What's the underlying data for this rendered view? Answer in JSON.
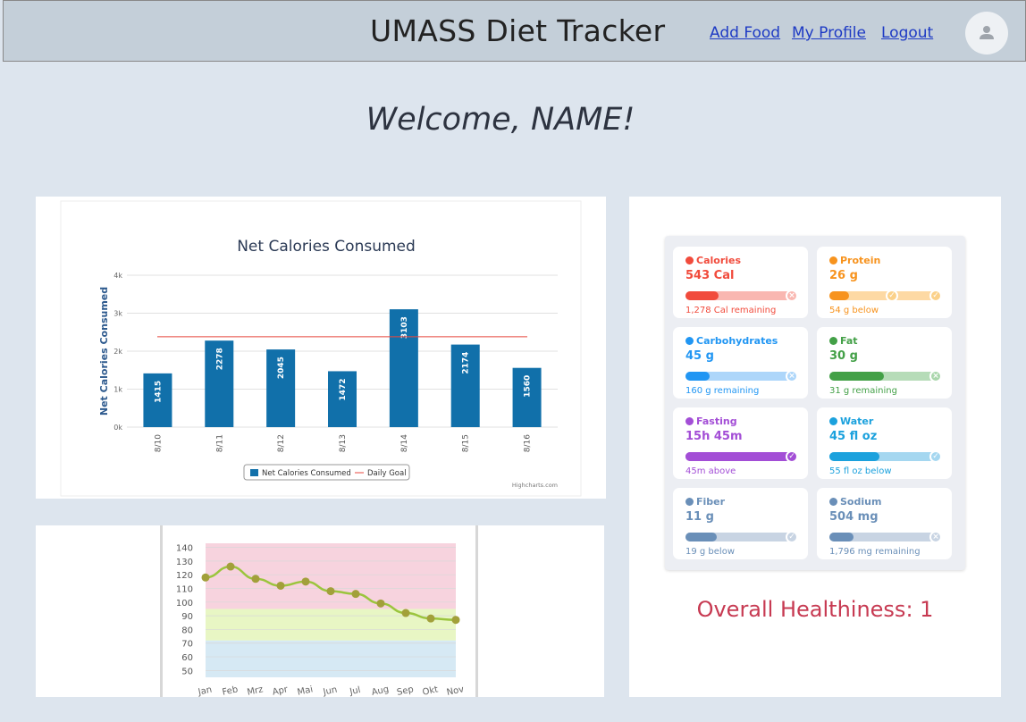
{
  "header": {
    "title": "UMASS Diet Tracker",
    "links": {
      "add_food": "Add Food",
      "my_profile": "My Profile",
      "logout": "Logout"
    }
  },
  "welcome": "Welcome, NAME!",
  "calories_chart": {
    "credit": "Highcharts.com",
    "chart_data": {
      "type": "bar",
      "title": "Net Calories Consumed",
      "xlabel": "",
      "ylabel": "Net Calories Consumed",
      "categories": [
        "8/10",
        "8/11",
        "8/12",
        "8/13",
        "8/14",
        "8/15",
        "8/16"
      ],
      "series": [
        {
          "name": "Net Calories Consumed",
          "values": [
            1415,
            2278,
            2045,
            1472,
            3103,
            2174,
            1560
          ]
        }
      ],
      "goal": {
        "name": "Daily Goal",
        "value": 2380
      },
      "ylim": [
        0,
        4000
      ],
      "yticks": [
        "0k",
        "1k",
        "2k",
        "3k",
        "4k"
      ],
      "grid": true,
      "legend": "bottom-center",
      "colors": {
        "bar": "#1170aa",
        "goal": "#e8473f"
      }
    }
  },
  "weight_chart": {
    "chart_data": {
      "type": "line",
      "title": "",
      "categories": [
        "Jan",
        "Feb",
        "Mrz",
        "Apr",
        "Mai",
        "Jun",
        "Jul",
        "Aug",
        "Sep",
        "Okt",
        "Nov"
      ],
      "series": [
        {
          "values": [
            118,
            126,
            117,
            112,
            115,
            108,
            106,
            99,
            92,
            88,
            87
          ]
        }
      ],
      "ylim": [
        45,
        143
      ],
      "yticks": [
        50,
        60,
        70,
        80,
        90,
        100,
        110,
        120,
        130,
        140
      ],
      "bands": [
        {
          "from": 45,
          "to": 72,
          "color": "#d6e9f4"
        },
        {
          "from": 72,
          "to": 95,
          "color": "#e8f6c4"
        },
        {
          "from": 95,
          "to": 143,
          "color": "#f7d3de"
        }
      ],
      "colors": {
        "line": "#9bc53d",
        "point": "#a2a03a"
      }
    }
  },
  "nutrients": [
    {
      "name": "Calories",
      "value": "543 Cal",
      "sub": "1,278 Cal remaining",
      "color": "#f14b3c",
      "track": "#f9b7b1",
      "fill": 0.3,
      "end_icon": "x-icon",
      "end_color": "#f9b7b1",
      "icon": "flame-icon"
    },
    {
      "name": "Protein",
      "value": "26 g",
      "sub": "54 g below",
      "color": "#f7931e",
      "track": "#fdd9a4",
      "fill": 0.18,
      "end_icon": "check-icon",
      "end_color": "#fbd18a",
      "icon": "protein-icon",
      "mid_check": true
    },
    {
      "name": "Carbohydrates",
      "value": "45 g",
      "sub": "160 g remaining",
      "color": "#2196f3",
      "track": "#add6fa",
      "fill": 0.22,
      "end_icon": "x-icon",
      "end_color": "#add6fa",
      "icon": "carb-icon"
    },
    {
      "name": "Fat",
      "value": "30 g",
      "sub": "31 g remaining",
      "color": "#43a047",
      "track": "#b6dcb8",
      "fill": 0.49,
      "end_icon": "x-icon",
      "end_color": "#a9d6ab",
      "icon": "fat-icon"
    },
    {
      "name": "Fasting",
      "value": "15h 45m",
      "sub": "45m above",
      "color": "#a34ed6",
      "track": "#a34ed6",
      "fill": 0.96,
      "end_icon": "check-icon",
      "end_color": "#a34ed6",
      "icon": "timer-icon"
    },
    {
      "name": "Water",
      "value": "45 fl oz",
      "sub": "55 fl oz below",
      "color": "#1ba1dd",
      "track": "#a5d7f0",
      "fill": 0.45,
      "end_icon": "check-icon",
      "end_color": "#a5d7f0",
      "icon": "drop-icon"
    },
    {
      "name": "Fiber",
      "value": "11 g",
      "sub": "19 g below",
      "color": "#6a8fb8",
      "track": "#c8d4e3",
      "fill": 0.28,
      "end_icon": "check-icon",
      "end_color": "#c8d4e3",
      "icon": "fiber-icon"
    },
    {
      "name": "Sodium",
      "value": "504 mg",
      "sub": "1,796 mg remaining",
      "color": "#6a8fb8",
      "track": "#c8d4e3",
      "fill": 0.22,
      "end_icon": "x-icon",
      "end_color": "#c8d4e3",
      "icon": "sodium-icon"
    }
  ],
  "healthiness": {
    "label": "Overall Healthiness: 1"
  }
}
